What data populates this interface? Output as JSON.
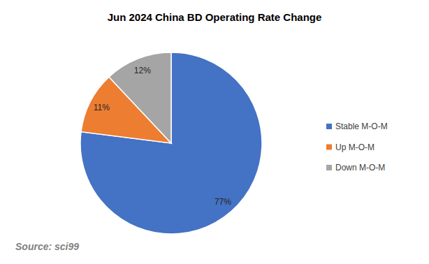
{
  "chart_data": {
    "type": "pie",
    "title": "Jun 2024 China BD Operating Rate Change",
    "categories": [
      "Stable M-O-M",
      "Up M-O-M",
      "Down M-O-M"
    ],
    "values": [
      77,
      11,
      12
    ],
    "value_labels": [
      "77%",
      "11%",
      "12%"
    ],
    "colors": [
      "#4472c4",
      "#ed7d31",
      "#a5a5a5"
    ],
    "data_labels": true,
    "legend": "right",
    "source": "Source: sci99"
  }
}
